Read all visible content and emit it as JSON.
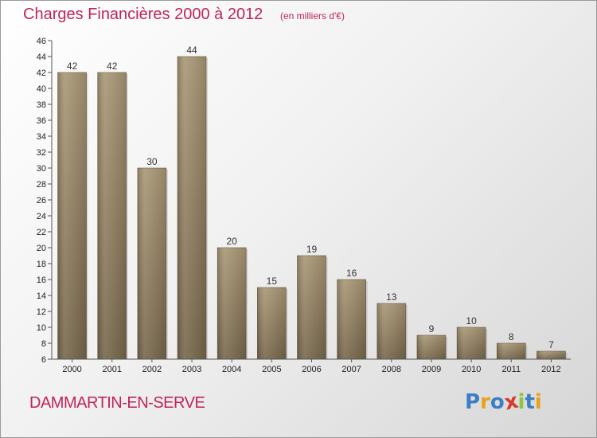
{
  "title": "Charges Financières 2000 à 2012",
  "subtitle": "(en milliers d'€)",
  "commune": "DAMMARTIN-EN-SERVE",
  "logo_text": "Proxiti",
  "colors": {
    "title": "#c0245a",
    "bar_light": "#a89775",
    "bar_dark": "#7a6a4d",
    "logo_letters": [
      "#3d7fc4",
      "#e8a21c",
      "#3d7fc4",
      "#d63b2a",
      "#8cc63f",
      "#3d7fc4",
      "#e8a21c"
    ]
  },
  "chart_data": {
    "type": "bar",
    "title": "Charges Financières 2000 à 2012",
    "subtitle": "(en milliers d'€)",
    "xlabel": "",
    "ylabel": "",
    "categories": [
      "2000",
      "2001",
      "2002",
      "2003",
      "2004",
      "2005",
      "2006",
      "2007",
      "2008",
      "2009",
      "2010",
      "2011",
      "2012"
    ],
    "values": [
      42,
      42,
      30,
      44,
      20,
      15,
      19,
      16,
      13,
      9,
      10,
      8,
      7
    ],
    "ylim": [
      6,
      46
    ],
    "ytick_step": 2,
    "grid": false,
    "data_labels": true
  }
}
